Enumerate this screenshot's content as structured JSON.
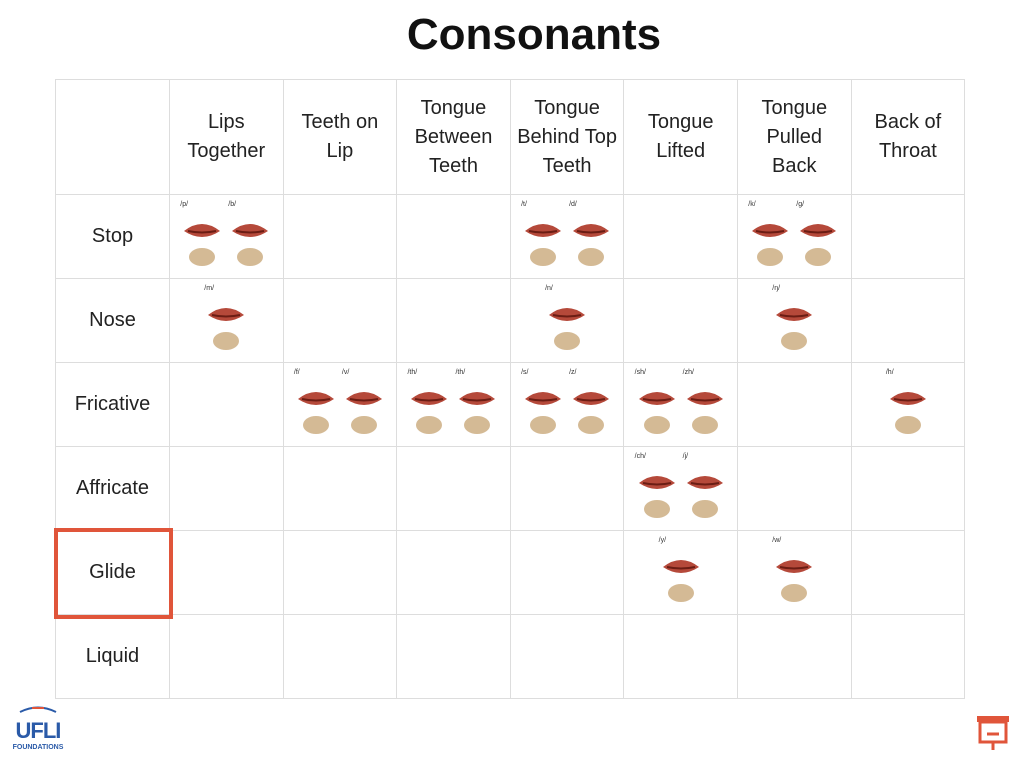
{
  "title": "Consonants",
  "table": {
    "columns": [
      "Lips Together",
      "Teeth on Lip",
      "Tongue Between Teeth",
      "Tongue Behind Top Teeth",
      "Tongue Lifted",
      "Tongue Pulled Back",
      "Back of Throat"
    ],
    "rows": [
      {
        "label": "Stop",
        "cells": [
          [
            "/p/",
            "/b/"
          ],
          [],
          [],
          [
            "/t/",
            "/d/"
          ],
          [],
          [
            "/k/",
            "/g/"
          ],
          []
        ]
      },
      {
        "label": "Nose",
        "cells": [
          [
            "/m/"
          ],
          [],
          [],
          [
            "/n/"
          ],
          [],
          [
            "/ŋ/"
          ],
          []
        ]
      },
      {
        "label": "Fricative",
        "cells": [
          [],
          [
            "/f/",
            "/v/"
          ],
          [
            "/th/",
            "/th/"
          ],
          [
            "/s/",
            "/z/"
          ],
          [
            "/sh/",
            "/zh/"
          ],
          [],
          [
            "/h/"
          ]
        ]
      },
      {
        "label": "Affricate",
        "cells": [
          [],
          [],
          [],
          [],
          [
            "/ch/",
            "/j/"
          ],
          [],
          []
        ]
      },
      {
        "label": "Glide",
        "cells": [
          [],
          [],
          [],
          [],
          [
            "/y/"
          ],
          [
            "/w/"
          ],
          []
        ]
      },
      {
        "label": "Liquid",
        "cells": [
          [],
          [],
          [],
          [],
          [],
          [],
          []
        ]
      }
    ]
  },
  "logo": {
    "name": "UFLI",
    "subtitle": "FOUNDATIONS"
  }
}
